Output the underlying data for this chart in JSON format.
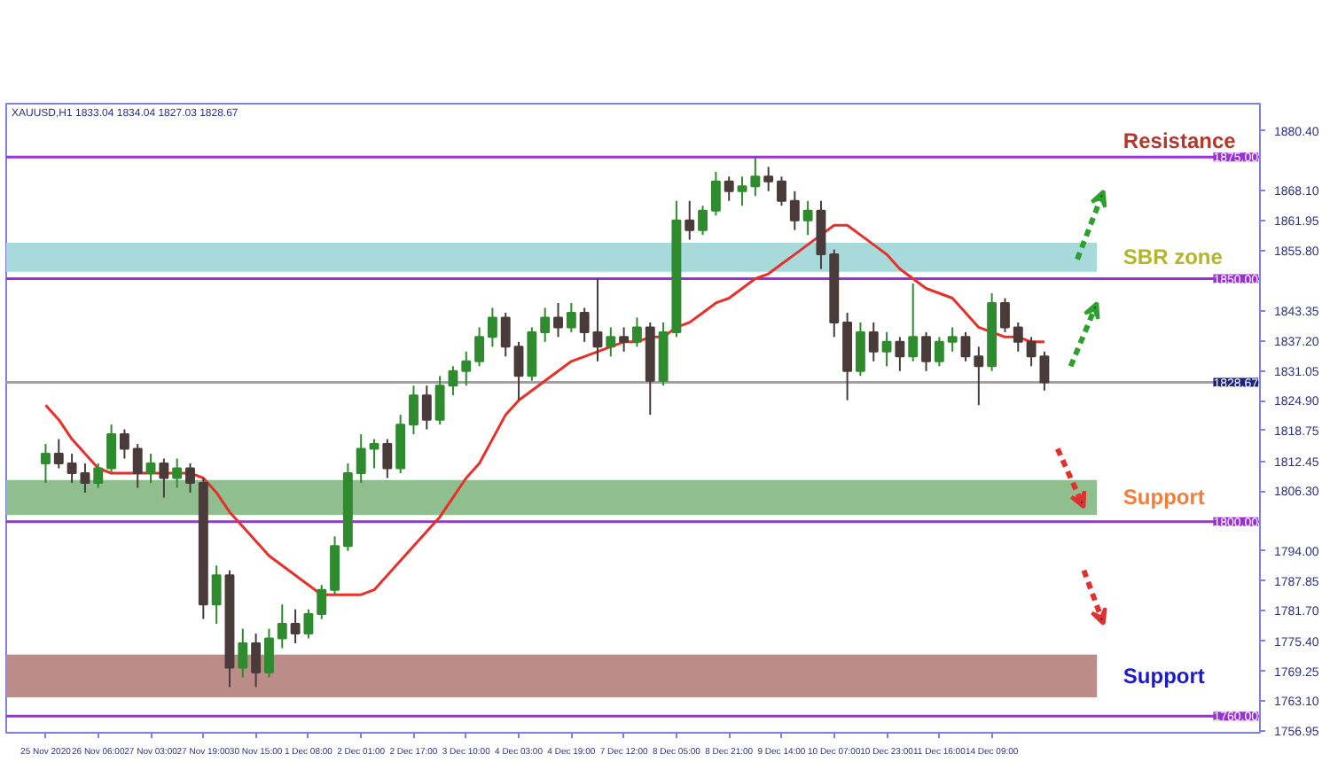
{
  "chart_data": {
    "type": "candlestick",
    "annotations": [
      "XAUUSD,H1  1833.04 1834.04 1827.03 1828.67",
      {
        "text": "Resistance",
        "y": 1875.0
      }
    ],
    "categories": [
      "25 Nov 2020",
      null,
      null,
      null,
      "26 Nov 06:00",
      null,
      null,
      null,
      "27 Nov 03:00",
      null,
      null,
      null,
      "27 Nov 19:00",
      null,
      null,
      null,
      "30 Nov 15:00",
      null,
      null,
      null,
      "1 Dec 08:00",
      null,
      null,
      null,
      "2 Dec 01:00",
      null,
      null,
      null,
      "2 Dec 17:00",
      null,
      null,
      null,
      "3 Dec 10:00",
      null,
      null,
      null,
      "4 Dec 03:00",
      null,
      null,
      null,
      "4 Dec 19:00",
      null,
      null,
      null,
      "7 Dec 12:00",
      null,
      null,
      null,
      "8 Dec 05:00",
      null,
      null,
      null,
      "8 Dec 21:00",
      null,
      null,
      null,
      "9 Dec 14:00",
      null,
      null,
      null,
      "10 Dec 07:00",
      null,
      null,
      null,
      "10 Dec 23:00",
      null,
      null,
      null,
      "11 Dec 16:00",
      null,
      null,
      null,
      "14 Dec 09:00",
      null,
      null,
      null,
      null
    ],
    "ohlc": [
      [
        1812,
        1816,
        1808,
        1814
      ],
      [
        1814,
        1817,
        1811,
        1812
      ],
      [
        1812,
        1814,
        1808,
        1810
      ],
      [
        1810,
        1812,
        1806,
        1808
      ],
      [
        1808,
        1812,
        1807,
        1811
      ],
      [
        1811,
        1820,
        1810,
        1818
      ],
      [
        1818,
        1819,
        1813,
        1815
      ],
      [
        1815,
        1816,
        1807,
        1810
      ],
      [
        1810,
        1814,
        1808,
        1812
      ],
      [
        1812,
        1813,
        1805,
        1809
      ],
      [
        1809,
        1813,
        1807,
        1811
      ],
      [
        1811,
        1812,
        1806,
        1808
      ],
      [
        1808,
        1809,
        1780,
        1783
      ],
      [
        1783,
        1791,
        1779,
        1789
      ],
      [
        1789,
        1790,
        1766,
        1770
      ],
      [
        1770,
        1778,
        1768,
        1775
      ],
      [
        1775,
        1777,
        1766,
        1769
      ],
      [
        1769,
        1778,
        1768,
        1776
      ],
      [
        1776,
        1783,
        1774,
        1779
      ],
      [
        1779,
        1782,
        1775,
        1777
      ],
      [
        1777,
        1782,
        1776,
        1781
      ],
      [
        1781,
        1787,
        1780,
        1786
      ],
      [
        1786,
        1797,
        1785,
        1795
      ],
      [
        1795,
        1812,
        1794,
        1810
      ],
      [
        1810,
        1818,
        1808,
        1815
      ],
      [
        1815,
        1817,
        1811,
        1816
      ],
      [
        1816,
        1817,
        1809,
        1811
      ],
      [
        1811,
        1822,
        1810,
        1820
      ],
      [
        1820,
        1828,
        1818,
        1826
      ],
      [
        1826,
        1828,
        1819,
        1821
      ],
      [
        1821,
        1830,
        1820,
        1828
      ],
      [
        1828,
        1832,
        1826,
        1831
      ],
      [
        1831,
        1835,
        1828,
        1833
      ],
      [
        1833,
        1840,
        1832,
        1838
      ],
      [
        1838,
        1844,
        1836,
        1842
      ],
      [
        1842,
        1843,
        1834,
        1836
      ],
      [
        1836,
        1837,
        1825,
        1830
      ],
      [
        1830,
        1840,
        1829,
        1839
      ],
      [
        1839,
        1844,
        1837,
        1842
      ],
      [
        1842,
        1845,
        1838,
        1840
      ],
      [
        1840,
        1845,
        1839,
        1843
      ],
      [
        1843,
        1844,
        1837,
        1839
      ],
      [
        1839,
        1850,
        1833,
        1836
      ],
      [
        1836,
        1840,
        1834,
        1838
      ],
      [
        1838,
        1840,
        1835,
        1837
      ],
      [
        1837,
        1842,
        1836,
        1840
      ],
      [
        1840,
        1841,
        1822,
        1829
      ],
      [
        1829,
        1841,
        1828,
        1839
      ],
      [
        1839,
        1866,
        1838,
        1862
      ],
      [
        1862,
        1866,
        1858,
        1860
      ],
      [
        1860,
        1865,
        1859,
        1864
      ],
      [
        1864,
        1872,
        1863,
        1870
      ],
      [
        1870,
        1871,
        1866,
        1868
      ],
      [
        1868,
        1871,
        1865,
        1869
      ],
      [
        1869,
        1875,
        1867,
        1871
      ],
      [
        1871,
        1873,
        1868,
        1870
      ],
      [
        1870,
        1871,
        1865,
        1866
      ],
      [
        1866,
        1868,
        1860,
        1862
      ],
      [
        1862,
        1866,
        1859,
        1864
      ],
      [
        1864,
        1866,
        1852,
        1855
      ],
      [
        1855,
        1856,
        1838,
        1841
      ],
      [
        1841,
        1843,
        1825,
        1831
      ],
      [
        1831,
        1841,
        1830,
        1839
      ],
      [
        1839,
        1841,
        1833,
        1835
      ],
      [
        1835,
        1839,
        1832,
        1837
      ],
      [
        1837,
        1838,
        1831,
        1834
      ],
      [
        1834,
        1849,
        1833,
        1838
      ],
      [
        1838,
        1839,
        1831,
        1833
      ],
      [
        1833,
        1838,
        1832,
        1837
      ],
      [
        1837,
        1840,
        1835,
        1838
      ],
      [
        1838,
        1839,
        1833,
        1834
      ],
      [
        1834,
        1836,
        1824,
        1832
      ],
      [
        1832,
        1847,
        1831,
        1845
      ],
      [
        1845,
        1846,
        1839,
        1840
      ],
      [
        1840,
        1841,
        1835,
        1837
      ],
      [
        1837,
        1838,
        1832,
        1834
      ],
      [
        1834,
        1835,
        1827,
        1828.67
      ]
    ],
    "colors": [
      "#2e8b2e",
      "#4a3b3b",
      "#4a3b3b",
      "#4a3b3b",
      "#2e8b2e",
      "#2e8b2e",
      "#4a3b3b",
      "#4a3b3b",
      "#2e8b2e",
      "#4a3b3b",
      "#2e8b2e",
      "#4a3b3b",
      "#4a3b3b",
      "#2e8b2e",
      "#4a3b3b",
      "#2e8b2e",
      "#4a3b3b",
      "#2e8b2e",
      "#2e8b2e",
      "#4a3b3b",
      "#2e8b2e",
      "#2e8b2e",
      "#2e8b2e",
      "#2e8b2e",
      "#2e8b2e",
      "#2e8b2e",
      "#4a3b3b",
      "#2e8b2e",
      "#2e8b2e",
      "#4a3b3b",
      "#2e8b2e",
      "#2e8b2e",
      "#2e8b2e",
      "#2e8b2e",
      "#2e8b2e",
      "#4a3b3b",
      "#4a3b3b",
      "#2e8b2e",
      "#2e8b2e",
      "#4a3b3b",
      "#2e8b2e",
      "#4a3b3b",
      "#4a3b3b",
      "#2e8b2e",
      "#4a3b3b",
      "#2e8b2e",
      "#4a3b3b",
      "#2e8b2e",
      "#2e8b2e",
      "#4a3b3b",
      "#2e8b2e",
      "#2e8b2e",
      "#4a3b3b",
      "#2e8b2e",
      "#2e8b2e",
      "#4a3b3b",
      "#4a3b3b",
      "#4a3b3b",
      "#2e8b2e",
      "#4a3b3b",
      "#4a3b3b",
      "#4a3b3b",
      "#2e8b2e",
      "#4a3b3b",
      "#2e8b2e",
      "#4a3b3b",
      "#2e8b2e",
      "#4a3b3b",
      "#2e8b2e",
      "#2e8b2e",
      "#4a3b3b",
      "#4a3b3b",
      "#2e8b2e",
      "#4a3b3b",
      "#4a3b3b",
      "#4a3b3b",
      "#4a3b3b"
    ],
    "series": [
      {
        "type": "line",
        "color": "#e8302a",
        "values": [
          1824,
          1821,
          1817,
          1814,
          1811,
          1810,
          1810,
          1810,
          1810,
          1810,
          1810,
          1810,
          1809,
          1806,
          1802,
          1799,
          1796,
          1793,
          1791,
          1789,
          1787,
          1785,
          1785,
          1785,
          1785,
          1786,
          1789,
          1792,
          1795,
          1798,
          1801,
          1805,
          1809,
          1812,
          1817,
          1822,
          1825,
          1827,
          1829,
          1831,
          1833,
          1834,
          1835,
          1836,
          1837,
          1837,
          1838,
          1838,
          1840,
          1841,
          1843,
          1845,
          1846,
          1848,
          1850,
          1851,
          1853,
          1855,
          1857,
          1859,
          1861,
          1861,
          1859,
          1857,
          1855,
          1852,
          1850,
          1848,
          1847,
          1846,
          1843,
          1840,
          1839,
          1838,
          1838,
          1837,
          1837
        ]
      }
    ],
    "ylim": [
      1756.6,
      1886.0
    ],
    "yticks": [
      {
        "value": 1880.4,
        "label": "1880.40"
      },
      {
        "value": 1868.1,
        "label": "1868.10"
      },
      {
        "value": 1861.95,
        "label": "1861.95"
      },
      {
        "value": 1855.8,
        "label": "1855.80"
      },
      {
        "value": 1843.35,
        "label": "1843.35"
      },
      {
        "value": 1837.2,
        "label": "1837.20"
      },
      {
        "value": 1831.05,
        "label": "1831.05"
      },
      {
        "value": 1824.9,
        "label": "1824.90"
      },
      {
        "value": 1818.75,
        "label": "1818.75"
      },
      {
        "value": 1812.45,
        "label": "1812.45"
      },
      {
        "value": 1806.3,
        "label": "1806.30"
      },
      {
        "value": 1794.0,
        "label": "1794.00"
      },
      {
        "value": 1787.85,
        "label": "1787.85"
      },
      {
        "value": 1781.7,
        "label": "1781.70"
      },
      {
        "value": 1775.4,
        "label": "1775.40"
      },
      {
        "value": 1769.25,
        "label": "1769.25"
      },
      {
        "value": 1763.1,
        "label": "1763.10"
      },
      {
        "value": 1756.95,
        "label": "1756.95"
      }
    ],
    "ref_lines": [
      {
        "axis": "y",
        "value": 1875.0,
        "label": "1875.00",
        "color": "#9b30d9"
      },
      {
        "axis": "y",
        "value": 1850.0,
        "label": "1850.00",
        "color": "#9b30d9"
      },
      {
        "axis": "y",
        "value": 1828.67,
        "label": "1828.67",
        "color": "#a0a0a0"
      },
      {
        "axis": "y",
        "value": 1800.0,
        "label": "1800.00",
        "color": "#9b30d9"
      },
      {
        "axis": "y",
        "value": 1760.0,
        "label": "1760.00",
        "color": "#9b30d9"
      }
    ],
    "bands": [
      {
        "axis": "y",
        "from": 1851.4,
        "to": 1857.4,
        "label": "SBR zone",
        "color": "#a8dadc"
      },
      {
        "axis": "y",
        "from": 1801.4,
        "to": 1808.6,
        "label": "Support",
        "color": "#8fbf8f"
      },
      {
        "axis": "y",
        "from": 1763.9,
        "to": 1772.7,
        "label": "Support",
        "color": "#bb8c88"
      }
    ]
  }
}
